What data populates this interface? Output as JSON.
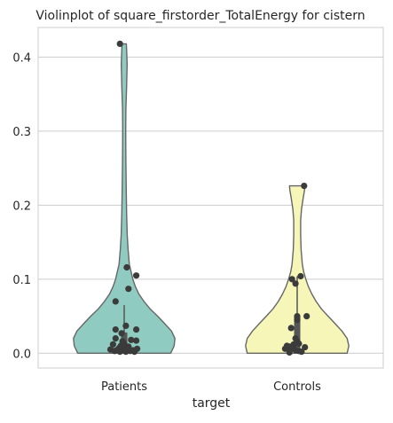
{
  "chart_data": {
    "type": "violin",
    "title": "Violinplot of square_firstorder_TotalEnergy for cistern",
    "xlabel": "target",
    "ylabel": "",
    "ylim": [
      -0.02,
      0.44
    ],
    "yticks": [
      0.0,
      0.1,
      0.2,
      0.3,
      0.4
    ],
    "ytick_labels": [
      "0.0",
      "0.1",
      "0.2",
      "0.3",
      "0.4"
    ],
    "grid": "horizontal",
    "categories": [
      "Patients",
      "Controls"
    ],
    "series": [
      {
        "category": "Patients",
        "color": "#8fcbc0",
        "points": [
          {
            "x": -0.05,
            "y": 0.418
          },
          {
            "x": 0.03,
            "y": 0.116
          },
          {
            "x": 0.14,
            "y": 0.105
          },
          {
            "x": 0.05,
            "y": 0.087
          },
          {
            "x": -0.1,
            "y": 0.07
          },
          {
            "x": 0.02,
            "y": 0.037
          },
          {
            "x": -0.1,
            "y": 0.032
          },
          {
            "x": 0.14,
            "y": 0.032
          },
          {
            "x": -0.03,
            "y": 0.027
          },
          {
            "x": -0.1,
            "y": 0.02
          },
          {
            "x": 0.08,
            "y": 0.018
          },
          {
            "x": 0.14,
            "y": 0.017
          },
          {
            "x": -0.02,
            "y": 0.016
          },
          {
            "x": 0.0,
            "y": 0.013
          },
          {
            "x": -0.13,
            "y": 0.012
          },
          {
            "x": -0.04,
            "y": 0.01
          },
          {
            "x": 0.05,
            "y": 0.009
          },
          {
            "x": 0.0,
            "y": 0.007
          },
          {
            "x": -0.06,
            "y": 0.007
          },
          {
            "x": 0.15,
            "y": 0.006
          },
          {
            "x": -0.16,
            "y": 0.005
          },
          {
            "x": -0.09,
            "y": 0.004
          },
          {
            "x": 0.1,
            "y": 0.004
          },
          {
            "x": -0.02,
            "y": 0.004
          },
          {
            "x": 0.07,
            "y": 0.003
          },
          {
            "x": -0.11,
            "y": 0.003
          },
          {
            "x": 0.02,
            "y": 0.002
          },
          {
            "x": 0.12,
            "y": 0.002
          },
          {
            "x": -0.05,
            "y": 0.002
          }
        ],
        "quartiles": {
          "q1": 0.004,
          "median": 0.012,
          "q3": 0.028,
          "whisker_low": 0.002,
          "whisker_high": 0.065
        }
      },
      {
        "category": "Controls",
        "color": "#f6f6b8",
        "points": [
          {
            "x": 0.08,
            "y": 0.226
          },
          {
            "x": 0.04,
            "y": 0.104
          },
          {
            "x": -0.06,
            "y": 0.1
          },
          {
            "x": -0.02,
            "y": 0.094
          },
          {
            "x": 0.11,
            "y": 0.05
          },
          {
            "x": 0.0,
            "y": 0.05
          },
          {
            "x": 0.0,
            "y": 0.045
          },
          {
            "x": -0.07,
            "y": 0.034
          },
          {
            "x": -0.02,
            "y": 0.02
          },
          {
            "x": 0.0,
            "y": 0.016
          },
          {
            "x": 0.02,
            "y": 0.013
          },
          {
            "x": -0.04,
            "y": 0.012
          },
          {
            "x": -0.12,
            "y": 0.01
          },
          {
            "x": -0.09,
            "y": 0.009
          },
          {
            "x": 0.09,
            "y": 0.008
          },
          {
            "x": -0.04,
            "y": 0.006
          },
          {
            "x": -0.14,
            "y": 0.006
          },
          {
            "x": -0.02,
            "y": 0.004
          },
          {
            "x": 0.02,
            "y": 0.003
          },
          {
            "x": 0.05,
            "y": 0.002
          },
          {
            "x": -0.09,
            "y": 0.001
          }
        ],
        "quartiles": {
          "q1": 0.007,
          "median": 0.013,
          "q3": 0.05,
          "whisker_low": 0.001,
          "whisker_high": 0.104
        }
      }
    ],
    "violin_widths": [
      {
        "category": "Patients",
        "profile": [
          [
            0.0,
            0.54
          ],
          [
            0.01,
            0.58
          ],
          [
            0.02,
            0.59
          ],
          [
            0.03,
            0.55
          ],
          [
            0.04,
            0.47
          ],
          [
            0.05,
            0.39
          ],
          [
            0.06,
            0.3
          ],
          [
            0.07,
            0.23
          ],
          [
            0.08,
            0.17
          ],
          [
            0.09,
            0.13
          ],
          [
            0.1,
            0.1
          ],
          [
            0.11,
            0.08
          ],
          [
            0.12,
            0.06
          ],
          [
            0.14,
            0.045
          ],
          [
            0.16,
            0.035
          ],
          [
            0.19,
            0.028
          ],
          [
            0.22,
            0.024
          ],
          [
            0.26,
            0.02
          ],
          [
            0.3,
            0.018
          ],
          [
            0.33,
            0.02
          ],
          [
            0.36,
            0.028
          ],
          [
            0.39,
            0.034
          ],
          [
            0.405,
            0.03
          ],
          [
            0.418,
            0.025
          ]
        ]
      },
      {
        "category": "Controls",
        "profile": [
          [
            0.0,
            0.58
          ],
          [
            0.01,
            0.6
          ],
          [
            0.02,
            0.58
          ],
          [
            0.03,
            0.52
          ],
          [
            0.04,
            0.44
          ],
          [
            0.05,
            0.36
          ],
          [
            0.06,
            0.28
          ],
          [
            0.07,
            0.22
          ],
          [
            0.08,
            0.17
          ],
          [
            0.09,
            0.13
          ],
          [
            0.1,
            0.1
          ],
          [
            0.11,
            0.075
          ],
          [
            0.12,
            0.06
          ],
          [
            0.14,
            0.045
          ],
          [
            0.16,
            0.04
          ],
          [
            0.18,
            0.04
          ],
          [
            0.195,
            0.05
          ],
          [
            0.21,
            0.07
          ],
          [
            0.22,
            0.085
          ],
          [
            0.226,
            0.09
          ]
        ]
      }
    ]
  }
}
